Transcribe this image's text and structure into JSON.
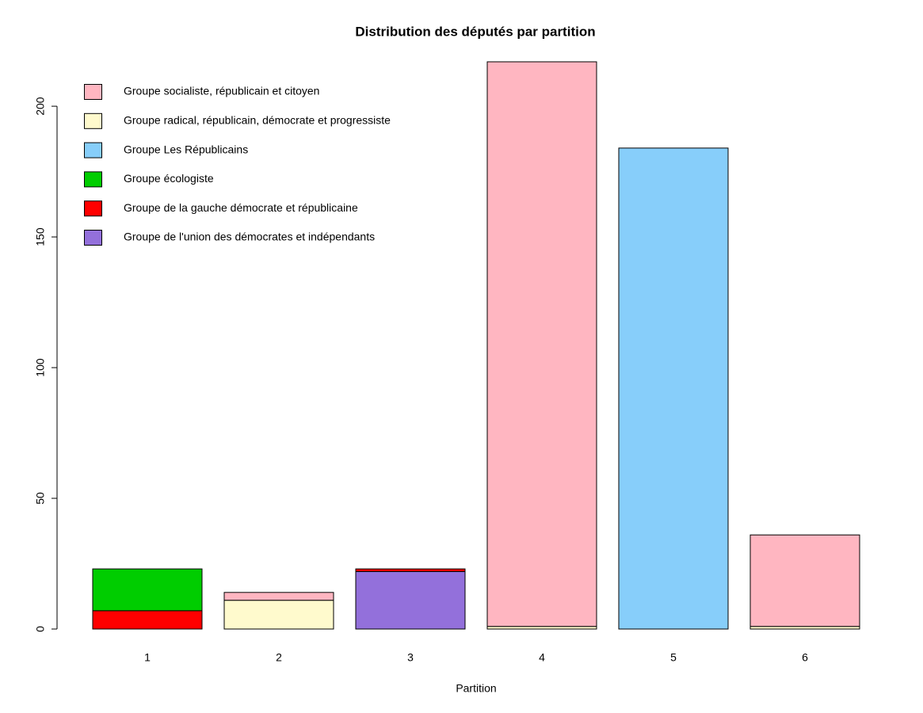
{
  "chart_data": {
    "type": "stacked_bar",
    "title": "Distribution des députés par partition",
    "x_label": "Partition",
    "categories": [
      "1",
      "2",
      "3",
      "4",
      "5",
      "6"
    ],
    "series": [
      {
        "name": "Groupe socialiste, républicain et citoyen",
        "color": "#FFB6C1",
        "values": [
          0,
          3,
          0,
          216,
          0,
          35
        ]
      },
      {
        "name": "Groupe radical, républicain, démocrate et progressiste",
        "color": "#FFFACD",
        "values": [
          0,
          11,
          0,
          1,
          0,
          1
        ]
      },
      {
        "name": "Groupe Les Républicains",
        "color": "#87CEFA",
        "values": [
          0,
          0,
          0,
          0,
          184,
          0
        ]
      },
      {
        "name": "Groupe écologiste",
        "color": "#00CD00",
        "values": [
          16,
          0,
          0,
          0,
          0,
          0
        ]
      },
      {
        "name": "Groupe de la gauche démocrate et républicaine",
        "color": "#FF0000",
        "values": [
          7,
          0,
          1,
          0,
          0,
          0
        ]
      },
      {
        "name": "Groupe de l'union des démocrates et indépendants",
        "color": "#9370DB",
        "values": [
          0,
          0,
          22,
          0,
          0,
          0
        ]
      }
    ],
    "ylim": [
      0,
      217
    ],
    "yticks": [
      0,
      50,
      100,
      150,
      200
    ],
    "grid": false,
    "legend": "top-left"
  }
}
